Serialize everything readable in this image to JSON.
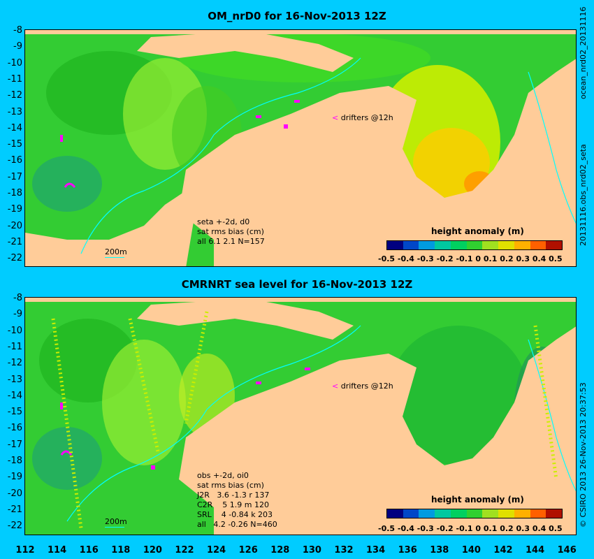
{
  "top_panel": {
    "title": "OM_nrD0 for 16-Nov-2013 12Z",
    "stats": "seta +-2d, d0\nsat rms bias (cm)\nall 6.1 2.1 N=157",
    "legend": "drifters @12h",
    "scale": "200m",
    "side_right": "20131116.obs_nrd02_seta",
    "side_left": "ocean_nrd02_20131116"
  },
  "bottom_panel": {
    "title": "CMRNRT sea level  for 16-Nov-2013 12Z",
    "stats": "obs +-2d, oi0\nsat rms bias (cm)\nJ2R   3.6 -1.3 r 137\nC2R    5 1.9 m 120\nSRL    4 -0.84 k 203\nall   4.2 -0.26 N=460",
    "legend": "drifters @12h",
    "scale": "200m",
    "side_text": "© CSIRO 2013  26-Nov-2013 20:37:53"
  },
  "y_ticks": [
    "-8",
    "-9",
    "-10",
    "-11",
    "-12",
    "-13",
    "-14",
    "-15",
    "-16",
    "-17",
    "-18",
    "-19",
    "-20",
    "-21",
    "-22"
  ],
  "x_ticks": [
    "112",
    "114",
    "116",
    "118",
    "120",
    "122",
    "124",
    "126",
    "128",
    "130",
    "132",
    "134",
    "136",
    "138",
    "140",
    "142",
    "144",
    "146"
  ],
  "colorbar": {
    "title": "height anomaly (m)",
    "ticks": "-0.5 -0.4 -0.3 -0.2 -0.1   0   0.1  0.2  0.3  0.4  0.5",
    "colors": [
      "#000080",
      "#0047c8",
      "#009be0",
      "#00c8a0",
      "#00d060",
      "#30d030",
      "#a0e020",
      "#e0e000",
      "#ffb000",
      "#ff6000",
      "#b01000"
    ]
  },
  "colors": {
    "background": "#00ccff",
    "land": "#ffcc99",
    "ocean_base": "#33cc33",
    "contour": "#00ffff",
    "drifter": "#ff00ff"
  }
}
